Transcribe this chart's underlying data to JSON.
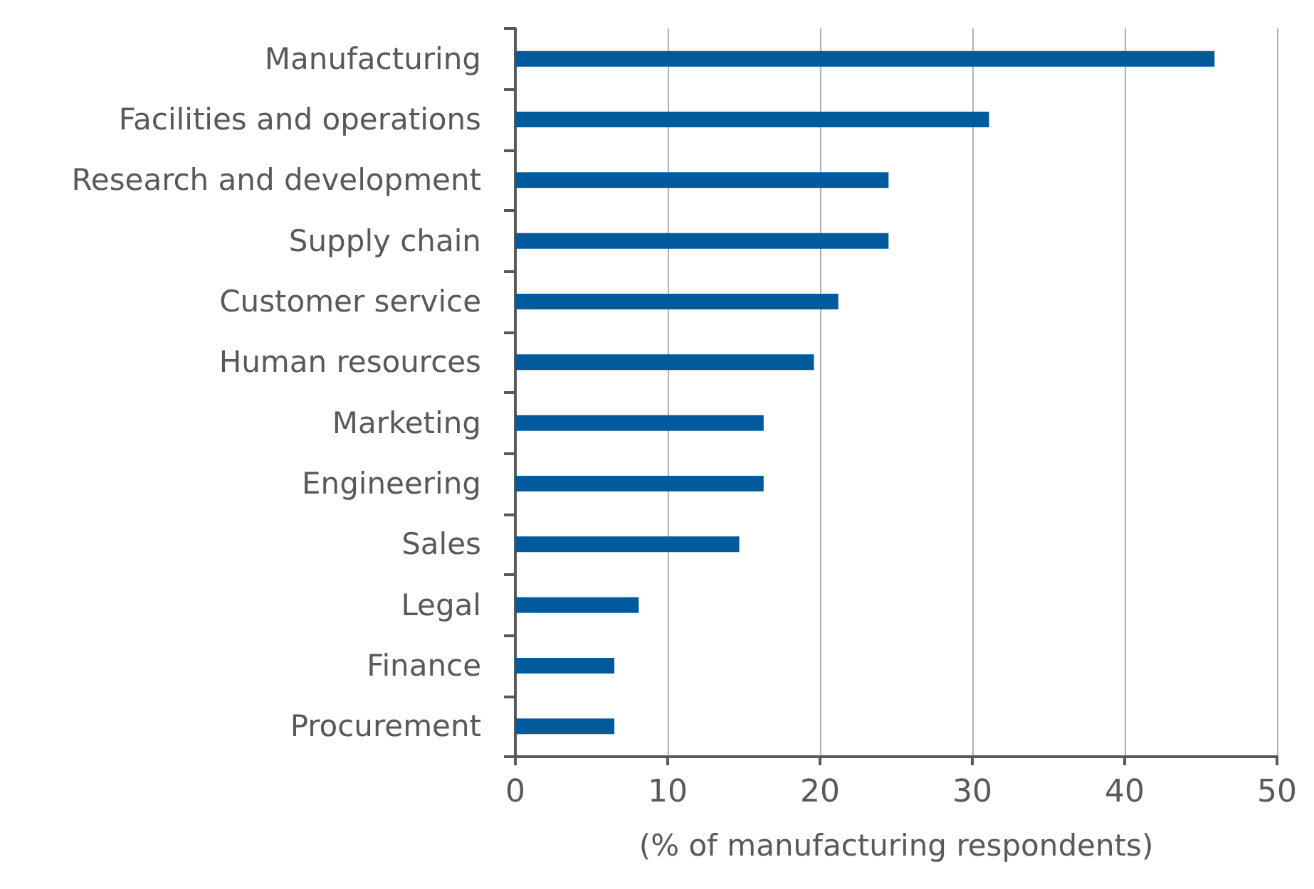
{
  "chart_data": {
    "type": "bar",
    "orientation": "horizontal",
    "xlabel": "(% of manufacturing respondents)",
    "categories": [
      "Manufacturing",
      "Facilities and operations",
      "Research and development",
      "Supply chain",
      "Customer service",
      "Human resources",
      "Marketing",
      "Engineering",
      "Sales",
      "Legal",
      "Finance",
      "Procurement"
    ],
    "values": [
      45.9,
      31.1,
      24.5,
      24.5,
      21.2,
      19.6,
      16.3,
      16.3,
      14.7,
      8.1,
      6.5,
      6.5
    ],
    "color": "#005a9c",
    "xlim": [
      0,
      50
    ],
    "xticks": [
      0,
      10,
      20,
      30,
      40,
      50
    ],
    "grid": "x"
  }
}
